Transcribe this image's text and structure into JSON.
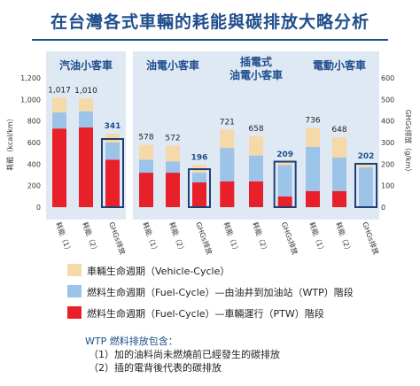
{
  "title": "在台灣各式車輛的耗能與碳排放大略分析",
  "chart_data": {
    "type": "bar",
    "stacked": true,
    "ylabel": "耗能（kcal/km）",
    "y2label": "GHGs排放（g/km）",
    "ylim": [
      0,
      1200
    ],
    "yticks": [
      0,
      200,
      400,
      600,
      800,
      1000,
      1200
    ],
    "y2lim": [
      0,
      600
    ],
    "y2ticks": [
      0,
      100,
      200,
      300,
      400,
      500,
      600
    ],
    "groups": [
      {
        "name": "汽油小客車",
        "bars": [
          {
            "label": "耗能（1）",
            "total": 1017,
            "ptw": 730,
            "wtp": 150,
            "vehicle": 137,
            "axis": "energy",
            "highlighted": false
          },
          {
            "label": "耗能（2）",
            "total": 1010,
            "ptw": 740,
            "wtp": 150,
            "vehicle": 120,
            "axis": "energy",
            "highlighted": false
          },
          {
            "label": "GHGs排放",
            "total": 341,
            "ptw": 220,
            "wtp": 80,
            "vehicle": 41,
            "axis": "ghg",
            "highlighted": true
          }
        ]
      },
      {
        "name": "油電小客車",
        "bars": [
          {
            "label": "耗能（1）",
            "total": 578,
            "ptw": 320,
            "wtp": 120,
            "vehicle": 138,
            "axis": "energy",
            "highlighted": false
          },
          {
            "label": "耗能（2）",
            "total": 572,
            "ptw": 320,
            "wtp": 105,
            "vehicle": 147,
            "axis": "energy",
            "highlighted": false
          },
          {
            "label": "GHGs排放",
            "total": 196,
            "ptw": 115,
            "wtp": 45,
            "vehicle": 36,
            "axis": "ghg",
            "highlighted": true
          }
        ]
      },
      {
        "name": "插電式油電小客車",
        "bars": [
          {
            "label": "耗能（1）",
            "total": 721,
            "ptw": 240,
            "wtp": 310,
            "vehicle": 171,
            "axis": "energy",
            "highlighted": false
          },
          {
            "label": "耗能（2）",
            "total": 658,
            "ptw": 240,
            "wtp": 240,
            "vehicle": 178,
            "axis": "energy",
            "highlighted": false
          },
          {
            "label": "GHGs排放",
            "total": 209,
            "ptw": 50,
            "wtp": 145,
            "vehicle": 14,
            "axis": "ghg",
            "highlighted": true
          }
        ]
      },
      {
        "name": "電動小客車",
        "bars": [
          {
            "label": "耗能（1）",
            "total": 736,
            "ptw": 150,
            "wtp": 410,
            "vehicle": 176,
            "axis": "energy",
            "highlighted": false
          },
          {
            "label": "耗能（2）",
            "total": 648,
            "ptw": 150,
            "wtp": 310,
            "vehicle": 188,
            "axis": "energy",
            "highlighted": false
          },
          {
            "label": "GHGs排放",
            "total": 202,
            "ptw": 0,
            "wtp": 185,
            "vehicle": 17,
            "axis": "ghg",
            "highlighted": true
          }
        ]
      }
    ],
    "colors": {
      "ptw": "#e8202a",
      "wtp": "#9cc3e8",
      "vehicle": "#f6d9a8",
      "group_bg": "#dfe9f4",
      "highlight_border": "#1f3f7a",
      "group_title": "#1f4e8c"
    }
  },
  "legend": [
    {
      "key": "vehicle",
      "label": "車輛生命週期（Vehicle-Cycle）"
    },
    {
      "key": "wtp",
      "label": "燃料生命週期（Fuel-Cycle）—由油井到加油站（WTP）階段"
    },
    {
      "key": "ptw",
      "label": "燃料生命週期（Fuel-Cycle）—車輛運行（PTW）階段"
    }
  ],
  "notes": {
    "title": "WTP 燃料排放包含：",
    "items": [
      "（1）加的油料尚未燃燒前已經發生的碳排放",
      "（2）插的電背後代表的碳排放"
    ]
  }
}
